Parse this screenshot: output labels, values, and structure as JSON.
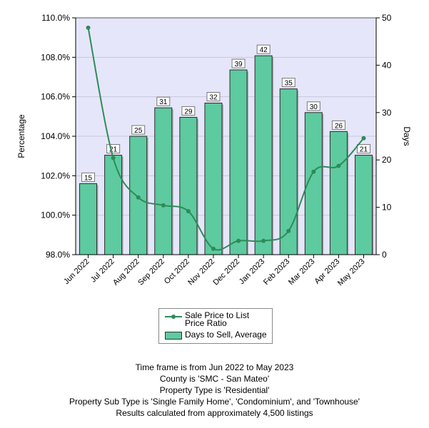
{
  "chart_data": {
    "type": "bar+line",
    "categories": [
      "Jun 2022",
      "Jul 2022",
      "Aug 2022",
      "Sep 2022",
      "Oct 2022",
      "Nov 2022",
      "Dec 2022",
      "Jan 2023",
      "Feb 2023",
      "Mar 2023",
      "Apr 2023",
      "May 2023"
    ],
    "series": [
      {
        "name": "Days to Sell, Average",
        "type": "bar",
        "axis": "right",
        "values": [
          15,
          21,
          25,
          31,
          29,
          32,
          39,
          42,
          35,
          30,
          26,
          21
        ],
        "color": "#5ecaa0"
      },
      {
        "name": "Sale Price to List Price Ratio",
        "type": "line",
        "axis": "left",
        "values": [
          109.5,
          102.9,
          100.9,
          100.5,
          100.2,
          98.3,
          98.7,
          98.7,
          99.2,
          102.2,
          102.5,
          103.9
        ],
        "color": "#2e8b57"
      }
    ],
    "ylabel": "Percentage",
    "y2label": "Days",
    "ylim": [
      98,
      110
    ],
    "y2lim": [
      0,
      50
    ],
    "yticks": [
      "98.0%",
      "100.0%",
      "102.0%",
      "104.0%",
      "106.0%",
      "108.0%",
      "110.0%"
    ],
    "y2ticks": [
      "0",
      "10",
      "20",
      "30",
      "40",
      "50"
    ],
    "legend_position": "bottom-center",
    "legend": [
      "Sale Price to List Price Ratio",
      "Days to Sell, Average"
    ],
    "plot_background": "#e6e6fa"
  },
  "notes": [
    "Time frame is from Jun 2022 to May 2023",
    "County is 'SMC - San Mateo'",
    "Property Type is 'Residential'",
    "Property Sub Type is 'Single Family Home', 'Condominium', and 'Townhouse'",
    "Results calculated from approximately 4,500 listings"
  ]
}
